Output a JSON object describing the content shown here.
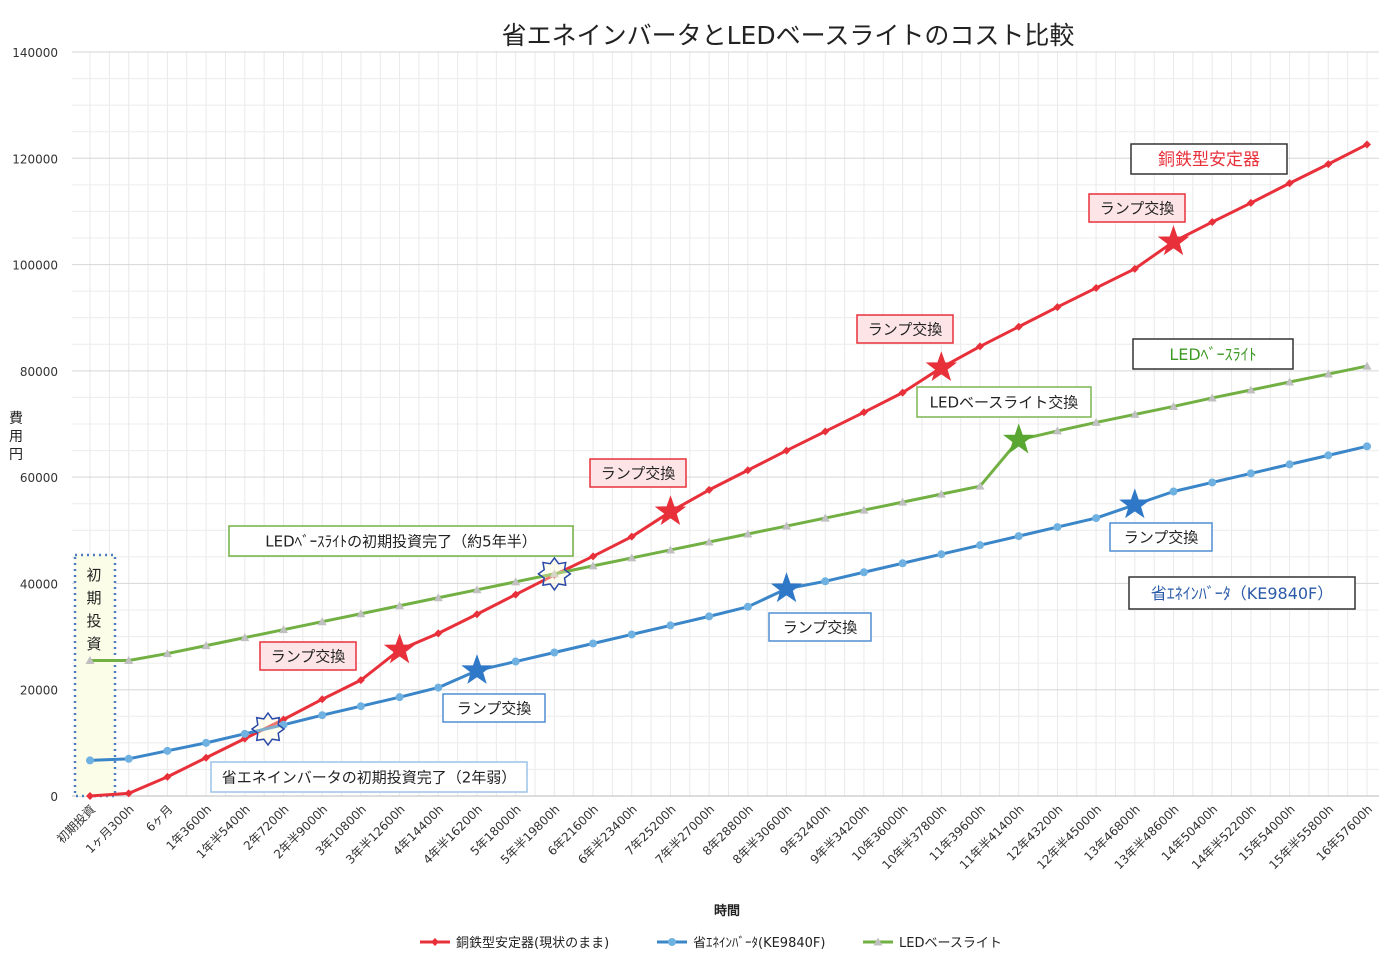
{
  "chart_data": {
    "type": "line",
    "title": "省エネインバータとLEDベースライトのコスト比較",
    "xlabel": "時間",
    "ylabel": "費用円",
    "ylim": [
      0,
      140000
    ],
    "y_ticks": [
      "0",
      "20000",
      "40000",
      "60000",
      "80000",
      "100000",
      "120000",
      "140000"
    ],
    "grid": true,
    "legend_position": "bottom",
    "categories": [
      "初期投資",
      "1ヶ月300h",
      "6ヶ月",
      "1年3600h",
      "1年半5400h",
      "2年7200h",
      "2年半9000h",
      "3年10800h",
      "3年半12600h",
      "4年14400h",
      "4年半16200h",
      "5年18000h",
      "5年半19800h",
      "6年21600h",
      "6年半23400h",
      "7年25200h",
      "7年半27000h",
      "8年28800h",
      "8年半30600h",
      "9年32400h",
      "9年半34200h",
      "10年36000h",
      "10年半37800h",
      "11年39600h",
      "11年半41400h",
      "12年43200h",
      "12年半45000h",
      "13年46800h",
      "13年半48600h",
      "14年50400h",
      "14年半52200h",
      "15年54000h",
      "15年半55800h",
      "16年57600h"
    ],
    "series": [
      {
        "name": "銅鉄型安定器(現状のまま)",
        "color": "#e8303a",
        "marker": "diamond",
        "values": [
          0,
          500,
          3600,
          7200,
          10800,
          14400,
          18200,
          21800,
          27500,
          30600,
          34200,
          37900,
          41600,
          45100,
          48800,
          53500,
          57600,
          61300,
          65000,
          68600,
          72200,
          75900,
          80600,
          84600,
          88300,
          92000,
          95600,
          99200,
          104300,
          108000,
          111600,
          115300,
          118900,
          122600
        ]
      },
      {
        "name": "省ｴﾈｲﾝﾊﾞｰﾀ(KE9840F)",
        "color": "#3a86c8",
        "marker": "circle",
        "values": [
          6700,
          7000,
          8500,
          10000,
          11700,
          13400,
          15200,
          16900,
          18600,
          20400,
          23600,
          25300,
          27000,
          28700,
          30400,
          32100,
          33800,
          35600,
          39000,
          40400,
          42100,
          43800,
          45500,
          47200,
          48900,
          50600,
          52300,
          54800,
          57300,
          59000,
          60700,
          62400,
          64100,
          65800
        ]
      },
      {
        "name": "LEDベースライト",
        "color": "#72b043",
        "marker": "triangle",
        "values": [
          25500,
          25500,
          26800,
          28300,
          29800,
          31300,
          32800,
          34300,
          35800,
          37300,
          38800,
          40300,
          41800,
          43300,
          44800,
          46300,
          47800,
          49300,
          50800,
          52300,
          53800,
          55300,
          56800,
          58300,
          67000,
          68700,
          70300,
          71800,
          73300,
          74900,
          76400,
          77900,
          79400,
          80900
        ]
      }
    ],
    "annotations": {
      "series_boxes": [
        {
          "text": "銅鉄型安定器",
          "color": "#e8303a"
        },
        {
          "text": "LEDﾍﾞｰｽﾗｲﾄ",
          "color": "#3f9a25"
        },
        {
          "text": "省ｴﾈｲﾝﾊﾞｰﾀ（KE9840F）",
          "color": "#2a5aa8"
        }
      ],
      "red_events": [
        {
          "text": "ランプ交換",
          "index": 8
        },
        {
          "text": "ランプ交換",
          "index": 15
        },
        {
          "text": "ランプ交換",
          "index": 22
        },
        {
          "text": "ランプ交換",
          "index": 28
        }
      ],
      "blue_events": [
        {
          "text": "ランプ交換",
          "index": 10
        },
        {
          "text": "ランプ交換",
          "index": 18
        },
        {
          "text": "ランプ交換",
          "index": 27
        }
      ],
      "green_event": {
        "text": "LEDベースライト交換",
        "index": 24
      },
      "crossover_led": {
        "text": "LEDﾍﾞｰｽﾗｲﾄの初期投資完了（約5年半）",
        "index": 12,
        "value": 41800
      },
      "crossover_inverter": {
        "text": "省エネインバータの初期投資完了（2年弱）",
        "index": 4.6,
        "value": 12600
      },
      "initial_investment": {
        "text": "初期投資"
      }
    }
  }
}
